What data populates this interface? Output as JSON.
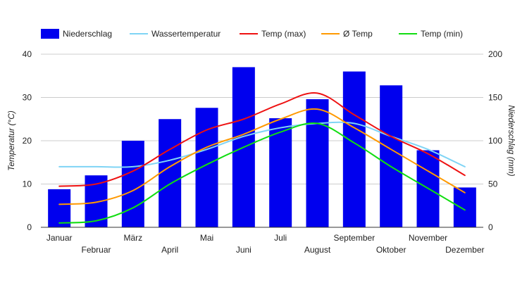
{
  "chart_data": {
    "type": "bar",
    "categories": [
      "Januar",
      "Februar",
      "März",
      "April",
      "Mai",
      "Juni",
      "Juli",
      "August",
      "September",
      "Oktober",
      "November",
      "Dezember"
    ],
    "series": [
      {
        "name": "Niederschlag",
        "type": "bar",
        "axis": "right",
        "color": "#0000ee",
        "values": [
          44,
          60,
          100,
          125,
          138,
          185,
          126,
          148,
          180,
          164,
          89,
          46
        ]
      },
      {
        "name": "Wassertemperatur",
        "type": "line",
        "axis": "left",
        "color": "#7fd4f5",
        "values": [
          14,
          14,
          14,
          15.5,
          18,
          21,
          23,
          24,
          24,
          21,
          18,
          14
        ]
      },
      {
        "name": "Temp (max)",
        "type": "line",
        "axis": "left",
        "color": "#ee1111",
        "values": [
          9.5,
          10,
          13,
          18,
          22.5,
          25,
          28.5,
          31,
          26,
          21,
          17,
          12
        ]
      },
      {
        "name": "Ø Temp",
        "type": "line",
        "axis": "left",
        "color": "#ff9900",
        "values": [
          5.3,
          5.8,
          8.5,
          14,
          18.5,
          21.5,
          25,
          27.3,
          23,
          18,
          13,
          8
        ]
      },
      {
        "name": "Temp (min)",
        "type": "line",
        "axis": "left",
        "color": "#11dd11",
        "values": [
          1,
          1.5,
          4.5,
          10,
          14.5,
          18.5,
          22,
          24,
          19.5,
          14,
          9,
          4
        ]
      }
    ],
    "y_left": {
      "label": "Temperatur (°C)",
      "ticks": [
        "0",
        "10",
        "20",
        "30",
        "40"
      ],
      "range": [
        0,
        40
      ]
    },
    "y_right": {
      "label": "Niederschlag (mm)",
      "ticks": [
        "0",
        "50",
        "100",
        "150",
        "200"
      ],
      "range": [
        0,
        200
      ]
    },
    "grid": true,
    "legend_position": "top-left"
  }
}
